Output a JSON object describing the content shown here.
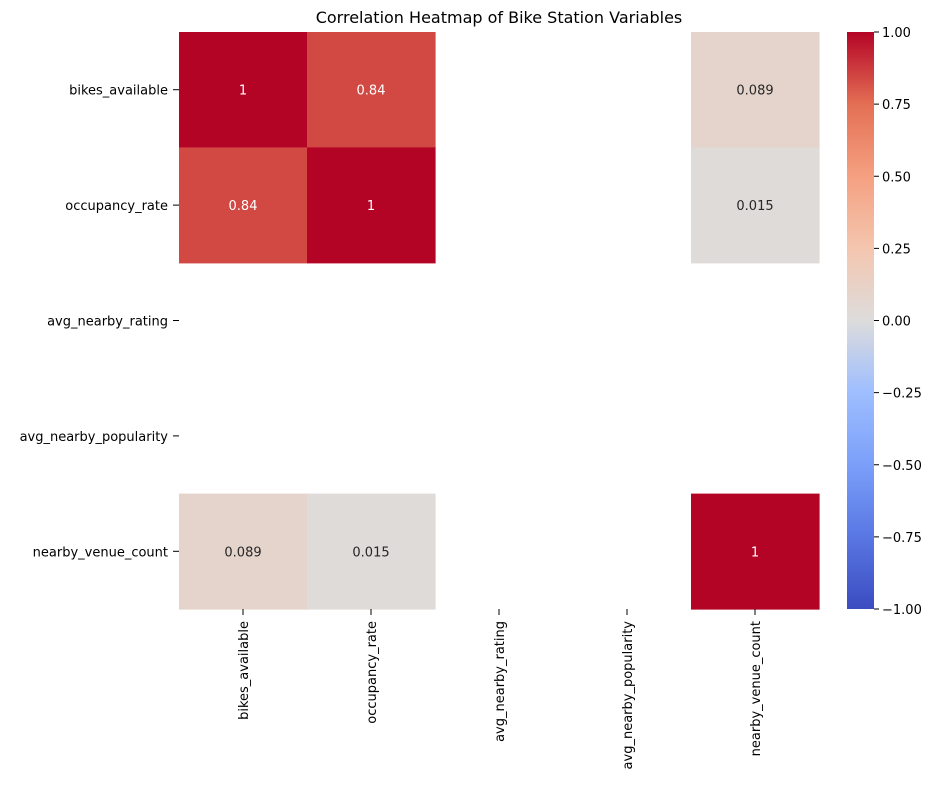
{
  "chart_data": {
    "type": "heatmap",
    "title": "Correlation Heatmap of Bike Station Variables",
    "rows": [
      "bikes_available",
      "occupancy_rate",
      "avg_nearby_rating",
      "avg_nearby_popularity",
      "nearby_venue_count"
    ],
    "columns": [
      "bikes_available",
      "occupancy_rate",
      "avg_nearby_rating",
      "avg_nearby_popularity",
      "nearby_venue_count"
    ],
    "matrix": [
      [
        1,
        0.84,
        null,
        null,
        0.089
      ],
      [
        0.84,
        1,
        null,
        null,
        0.015
      ],
      [
        null,
        null,
        null,
        null,
        null
      ],
      [
        null,
        null,
        null,
        null,
        null
      ],
      [
        0.089,
        0.015,
        null,
        null,
        1
      ]
    ],
    "annotations": [
      [
        "1",
        "0.84",
        "",
        "",
        "0.089"
      ],
      [
        "0.84",
        "1",
        "",
        "",
        "0.015"
      ],
      [
        "",
        "",
        "",
        "",
        ""
      ],
      [
        "",
        "",
        "",
        "",
        ""
      ],
      [
        "0.089",
        "0.015",
        "",
        "",
        "1"
      ]
    ],
    "colormap": "coolwarm",
    "vmin": -1,
    "vmax": 1,
    "colorbar_ticks": [
      1.0,
      0.75,
      0.5,
      0.25,
      0.0,
      -0.25,
      -0.5,
      -0.75,
      -1.0
    ],
    "colorbar_tick_labels": [
      "1.00",
      "0.75",
      "0.50",
      "0.25",
      "0.00",
      "−0.25",
      "−0.50",
      "−0.75",
      "−1.00"
    ]
  }
}
